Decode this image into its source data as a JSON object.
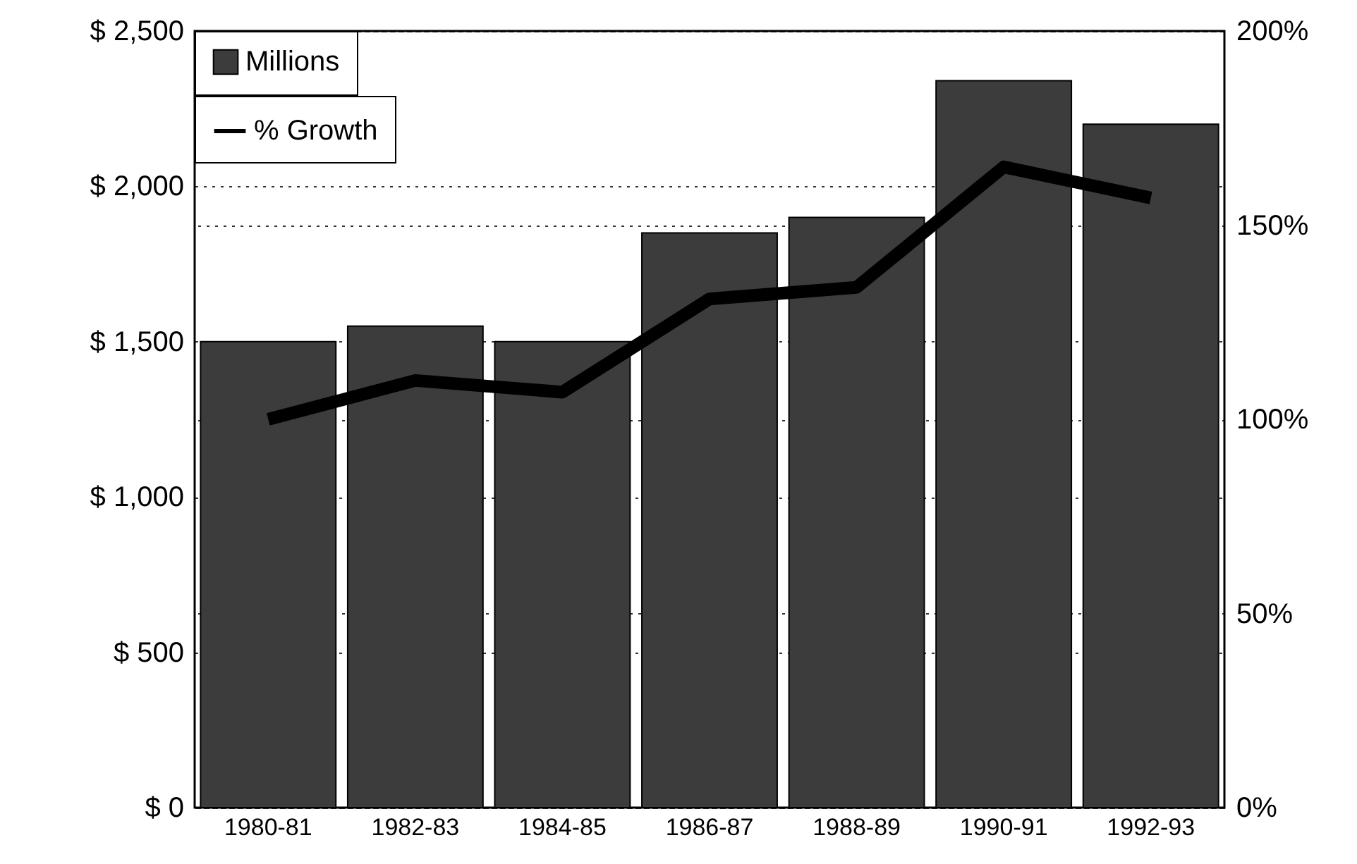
{
  "chart_data": {
    "type": "bar",
    "categories": [
      "1980-81",
      "1982-83",
      "1984-85",
      "1986-87",
      "1988-89",
      "1990-91",
      "1992-93"
    ],
    "series": [
      {
        "name": "Millions",
        "color": "#3c3c3c",
        "values": [
          1500,
          1550,
          1500,
          1850,
          1900,
          2340,
          2200
        ]
      },
      {
        "name": "% Growth",
        "type": "line",
        "axis": "y2",
        "color": "#000000",
        "values": [
          100,
          110,
          107,
          131,
          134,
          165,
          157
        ]
      }
    ],
    "ylim": [
      0,
      2500
    ],
    "yticks": [
      {
        "value": 0,
        "label": "$ 0"
      },
      {
        "value": 500,
        "label": "$ 500"
      },
      {
        "value": 1000,
        "label": "$ 1,000"
      },
      {
        "value": 1500,
        "label": "$ 1,500"
      },
      {
        "value": 2000,
        "label": "$ 2,000"
      },
      {
        "value": 2500,
        "label": "$ 2,500"
      }
    ],
    "y2lim": [
      0,
      200
    ],
    "y2ticks": [
      {
        "value": 0,
        "label": "0%"
      },
      {
        "value": 50,
        "label": "50%"
      },
      {
        "value": 100,
        "label": "100%"
      },
      {
        "value": 150,
        "label": "150%"
      },
      {
        "value": 200,
        "label": "200%"
      }
    ],
    "grid": "y",
    "legend": "top left",
    "marker": "none",
    "line_style": "solid"
  }
}
